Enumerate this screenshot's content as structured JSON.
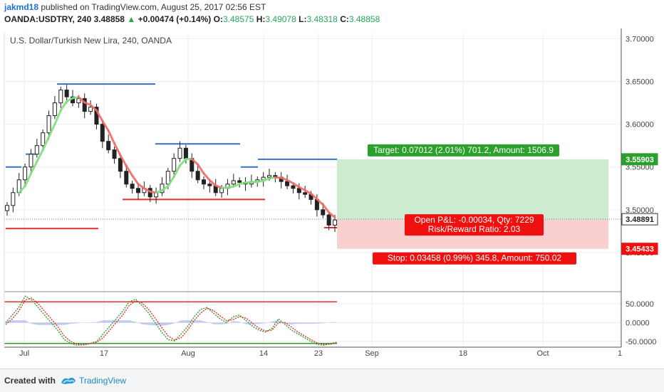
{
  "header": {
    "author": "jakmd18",
    "published": "published on TradingView.com, August 25, 2017 02:56 EST",
    "symbol_line": "OANDA:USDTRY, 240",
    "last": "3.48858",
    "change_arrow": "▲",
    "change": "+0.00474 (+0.14%)",
    "open_label": "O:",
    "open": "3.48575",
    "high_label": "H:",
    "high": "3.49078",
    "low_label": "L:",
    "low": "3.48318",
    "close_label": "C:",
    "close": "3.48858"
  },
  "footer": {
    "created_with": "Created with",
    "brand": "TradingView"
  },
  "colors": {
    "up": "#26a65b",
    "blue_line": "#3a6fc4",
    "red_line": "#e03030",
    "sma": "#ef6a6a",
    "sma_up": "#7ee07e",
    "target_zone": "#cdebcf",
    "stop_zone": "#f9d0d0",
    "target_label": "#2ca02c",
    "stop_label": "#f01010"
  },
  "chart_data": {
    "type": "candlestick",
    "title": "U.S. Dollar/Turkish New Lira, 240, OANDA",
    "y_ticks": [
      "3.70000",
      "3.65000",
      "3.60000",
      "3.55000",
      "3.50000",
      "3.45000"
    ],
    "y_tick_values": [
      3.7,
      3.65,
      3.6,
      3.55,
      3.5,
      3.45
    ],
    "ylim": [
      3.405,
      3.707
    ],
    "x_ticks": [
      "Jul",
      "17",
      "Aug",
      "14",
      "23",
      "Sep",
      "18",
      "Oct",
      "1"
    ],
    "price_labels": [
      {
        "text": "3.55903",
        "value": 3.55903,
        "bg": "#2ca02c"
      },
      {
        "text": "3.48891",
        "value": 3.48891,
        "bg": "#ffffff"
      },
      {
        "text": "3.45433",
        "value": 3.45433,
        "bg": "#f01010"
      }
    ],
    "resistance_levels": [
      {
        "value": 3.55,
        "x_from": 8,
        "x_to": 30
      },
      {
        "value": 3.565,
        "x_from": 36,
        "x_to": 52
      },
      {
        "value": 3.647,
        "x_from": 80,
        "x_to": 218
      },
      {
        "value": 3.577,
        "x_from": 218,
        "x_to": 337
      },
      {
        "value": 3.55,
        "x_from": 338,
        "x_to": 362
      },
      {
        "value": 3.559,
        "x_from": 362,
        "x_to": 473
      }
    ],
    "support_levels": [
      {
        "value": 3.478,
        "x_from": 8,
        "x_to": 138
      },
      {
        "value": 3.512,
        "x_from": 172,
        "x_to": 268
      },
      {
        "value": 3.512,
        "x_from": 268,
        "x_to": 372
      },
      {
        "value": 3.479,
        "x_from": 455,
        "x_to": 473
      }
    ],
    "position": {
      "entry": 3.48891,
      "target": 3.55903,
      "stop": 3.45433,
      "target_label": "Target: 0.07012 (2.01%) 701.2, Amount: 1506.9",
      "stop_label": "Stop: 0.03458 (0.99%) 345.8, Amount: 750.02",
      "pnl_label": "Open P&L: -0.00034, Qty: 7229",
      "rr_label": "Risk/Reward Ratio: 2.03"
    },
    "closes": [
      3.505,
      3.52,
      3.535,
      3.55,
      3.565,
      3.575,
      3.59,
      3.61,
      3.625,
      3.64,
      3.632,
      3.625,
      3.63,
      3.615,
      3.62,
      3.6,
      3.58,
      3.57,
      3.56,
      3.545,
      3.53,
      3.525,
      3.52,
      3.525,
      3.515,
      3.52,
      3.53,
      3.545,
      3.56,
      3.572,
      3.56,
      3.545,
      3.535,
      3.53,
      3.528,
      3.52,
      3.525,
      3.53,
      3.534,
      3.532,
      3.53,
      3.533,
      3.535,
      3.538,
      3.54,
      3.538,
      3.533,
      3.528,
      3.525,
      3.52,
      3.518,
      3.512,
      3.5,
      3.494,
      3.482,
      3.488
    ],
    "oscillator": {
      "y_ticks": [
        "50.0000",
        "0.0000",
        "-50.0000"
      ],
      "y_tick_values": [
        50,
        0,
        -50
      ],
      "ylim": [
        -65,
        80
      ],
      "upper_level": 55,
      "lower_level": -55,
      "k": [
        0,
        20,
        40,
        70,
        60,
        40,
        20,
        0,
        -20,
        -45,
        -55,
        -60,
        -58,
        -55,
        -50,
        -30,
        -10,
        10,
        30,
        55,
        62,
        45,
        25,
        0,
        -25,
        -45,
        -48,
        -30,
        -10,
        15,
        35,
        40,
        25,
        10,
        0,
        15,
        20,
        5,
        -10,
        -20,
        -25,
        -15,
        10,
        -5,
        -20,
        -30,
        -40,
        -50,
        -58,
        -60,
        -55,
        -52
      ],
      "d": [
        -5,
        10,
        30,
        60,
        65,
        50,
        30,
        10,
        -10,
        -35,
        -50,
        -57,
        -59,
        -56,
        -52,
        -40,
        -20,
        0,
        20,
        45,
        58,
        52,
        35,
        12,
        -12,
        -35,
        -46,
        -40,
        -20,
        5,
        25,
        38,
        32,
        18,
        5,
        8,
        16,
        12,
        -2,
        -15,
        -22,
        -20,
        0,
        0,
        -12,
        -25,
        -35,
        -45,
        -54,
        -58,
        -57,
        -54
      ]
    }
  }
}
